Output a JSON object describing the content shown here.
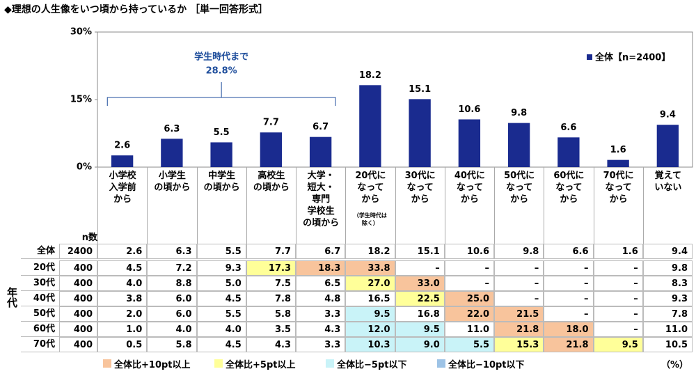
{
  "chart_data": {
    "type": "bar",
    "title": "◆理想の人生像をいつ頃から持っているか ［単一回答形式］",
    "categories": [
      "小学校\n入学前\nから",
      "小学生\nの頃から",
      "中学生\nの頃から",
      "高校生\nの頃から",
      "大学・\n短大・\n専門\n学校生\nの頃から",
      "20代に\nなって\nから",
      "30代に\nなって\nから",
      "40代に\nなって\nから",
      "50代に\nなって\nから",
      "60代に\nなって\nから",
      "70代に\nなって\nから",
      "覚えて\nいない"
    ],
    "category_note": {
      "text": "（学生時代は\n除く）",
      "category": 5
    },
    "series": [
      {
        "name": "全体【n=2400】",
        "color": "#1a2b8f",
        "values": [
          2.6,
          6.3,
          5.5,
          7.7,
          6.7,
          18.2,
          15.1,
          10.6,
          9.8,
          6.6,
          1.6,
          9.4
        ]
      }
    ],
    "ylim": [
      0,
      30
    ],
    "yticks": [
      {
        "value": 0,
        "label": "0%"
      },
      {
        "value": 15,
        "label": "15%"
      },
      {
        "value": 30,
        "label": "30%"
      }
    ],
    "grid": false,
    "annotation": {
      "text": "学生時代まで",
      "value_label": "28.8%",
      "from": 0,
      "to": 4
    },
    "legend": "top-right"
  },
  "table": {
    "n_header": "n数",
    "group_label": "年代",
    "legend": [
      {
        "label": "全体比+10pt以上",
        "color": "#f8c49c"
      },
      {
        "label": "全体比+5pt以上",
        "color": "#ffff99"
      },
      {
        "label": "全体比−5pt以下",
        "color": "#c9f3f8"
      },
      {
        "label": "全体比−10pt以下",
        "color": "#9dc3e6"
      }
    ],
    "unit": "（%）",
    "rows": [
      {
        "label": "全体",
        "n": "2400",
        "cells": [
          "2.6",
          "6.3",
          "5.5",
          "7.7",
          "6.7",
          "18.2",
          "15.1",
          "10.6",
          "9.8",
          "6.6",
          "1.6",
          "9.4"
        ],
        "highlight": [
          null,
          null,
          null,
          null,
          null,
          null,
          null,
          null,
          null,
          null,
          null,
          null
        ]
      },
      {
        "label": "20代",
        "n": "400",
        "cells": [
          "4.5",
          "7.2",
          "9.3",
          "17.3",
          "18.3",
          "33.8",
          "–",
          "–",
          "–",
          "–",
          "–",
          "9.8"
        ],
        "highlight": [
          null,
          null,
          null,
          1,
          0,
          0,
          null,
          null,
          null,
          null,
          null,
          null
        ]
      },
      {
        "label": "30代",
        "n": "400",
        "cells": [
          "4.0",
          "8.8",
          "5.0",
          "7.5",
          "6.5",
          "27.0",
          "33.0",
          "–",
          "–",
          "–",
          "–",
          "8.3"
        ],
        "highlight": [
          null,
          null,
          null,
          null,
          null,
          1,
          0,
          null,
          null,
          null,
          null,
          null
        ]
      },
      {
        "label": "40代",
        "n": "400",
        "cells": [
          "3.8",
          "6.0",
          "4.5",
          "7.8",
          "4.8",
          "16.5",
          "22.5",
          "25.0",
          "–",
          "–",
          "–",
          "9.3"
        ],
        "highlight": [
          null,
          null,
          null,
          null,
          null,
          null,
          1,
          0,
          null,
          null,
          null,
          null
        ]
      },
      {
        "label": "50代",
        "n": "400",
        "cells": [
          "2.0",
          "6.0",
          "5.5",
          "5.8",
          "3.3",
          "9.5",
          "16.8",
          "22.0",
          "21.5",
          "–",
          "–",
          "7.8"
        ],
        "highlight": [
          null,
          null,
          null,
          null,
          null,
          2,
          null,
          0,
          0,
          null,
          null,
          null
        ]
      },
      {
        "label": "60代",
        "n": "400",
        "cells": [
          "1.0",
          "4.0",
          "4.0",
          "3.5",
          "4.3",
          "12.0",
          "9.5",
          "11.0",
          "21.8",
          "18.0",
          "–",
          "11.0"
        ],
        "highlight": [
          null,
          null,
          null,
          null,
          null,
          2,
          2,
          null,
          0,
          0,
          null,
          null
        ]
      },
      {
        "label": "70代",
        "n": "400",
        "cells": [
          "0.5",
          "5.8",
          "4.5",
          "4.3",
          "3.3",
          "10.3",
          "9.0",
          "5.5",
          "15.3",
          "21.8",
          "9.5",
          "10.5"
        ],
        "highlight": [
          null,
          null,
          null,
          null,
          null,
          2,
          2,
          2,
          1,
          0,
          1,
          null
        ]
      }
    ]
  }
}
